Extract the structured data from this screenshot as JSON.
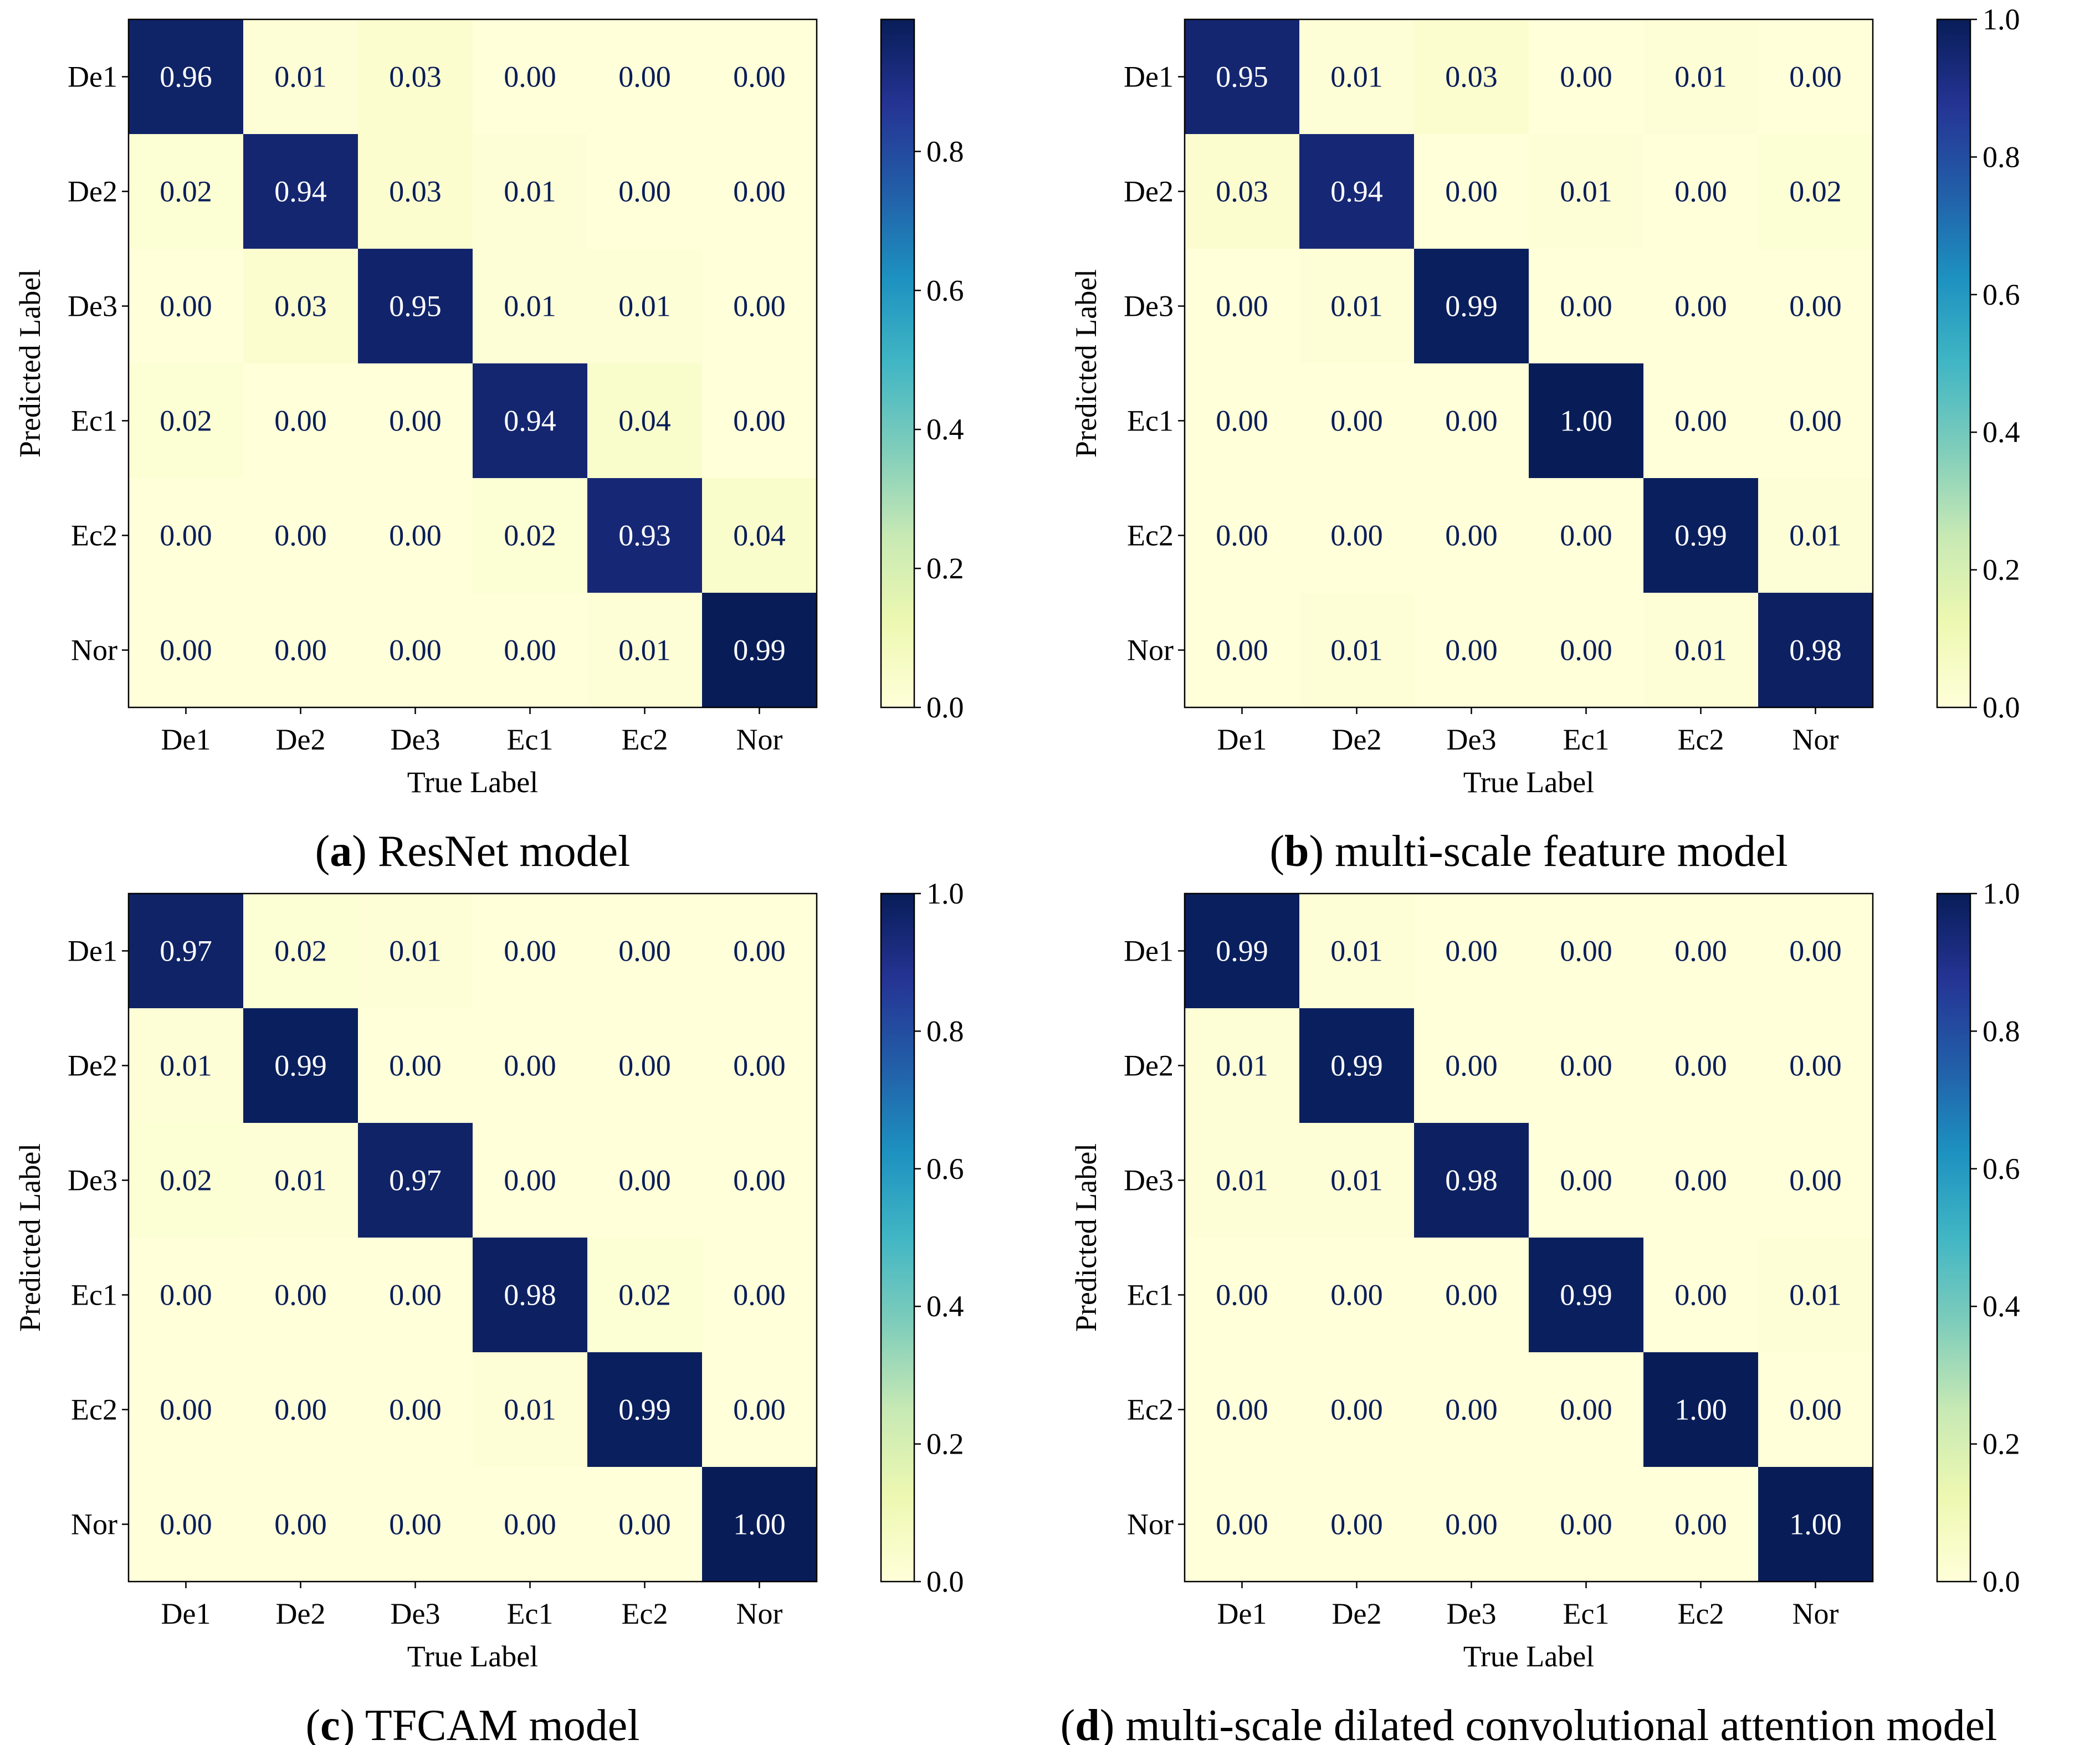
{
  "colors": {
    "low": "#ffffd9",
    "mid_low": "#edf8b1",
    "mid": "#7fcdbb",
    "mid_high": "#1d91c0",
    "high": "#081d58",
    "text_dark": "#081d58",
    "text_light": "#ffffff",
    "axis": "#000000"
  },
  "chart_data": [
    {
      "type": "heatmap",
      "caption_letter": "a",
      "caption_text": " ResNet model",
      "xlabel": "True Label",
      "ylabel": "Predicted Label",
      "x_categories": [
        "De1",
        "De2",
        "De3",
        "Ec1",
        "Ec2",
        "Nor"
      ],
      "y_categories": [
        "De1",
        "De2",
        "De3",
        "Ec1",
        "Ec2",
        "Nor"
      ],
      "values": [
        [
          0.96,
          0.01,
          0.03,
          0.0,
          0.0,
          0.0
        ],
        [
          0.02,
          0.94,
          0.03,
          0.01,
          0.0,
          0.0
        ],
        [
          0.0,
          0.03,
          0.95,
          0.01,
          0.01,
          0.0
        ],
        [
          0.02,
          0.0,
          0.0,
          0.94,
          0.04,
          0.0
        ],
        [
          0.0,
          0.0,
          0.0,
          0.02,
          0.93,
          0.04
        ],
        [
          0.0,
          0.0,
          0.0,
          0.0,
          0.01,
          0.99
        ]
      ],
      "labels": [
        [
          "0.96",
          "0.01",
          "0.03",
          "0.00",
          "0.00",
          "0.00"
        ],
        [
          "0.02",
          "0.94",
          "0.03",
          "0.01",
          "0.00",
          "0.00"
        ],
        [
          "0.00",
          "0.03",
          "0.95",
          "0.01",
          "0.01",
          "0.00"
        ],
        [
          "0.02",
          "0.00",
          "0.00",
          "0.94",
          "0.04",
          "0.00"
        ],
        [
          "0.00",
          "0.00",
          "0.00",
          "0.02",
          "0.93",
          "0.04"
        ],
        [
          "0.00",
          "0.00",
          "0.00",
          "0.00",
          "0.01",
          "0.99"
        ]
      ],
      "colorbar": {
        "vmin": 0.0,
        "vmax": 0.99,
        "ticks": [
          "0.0",
          "0.2",
          "0.4",
          "0.6",
          "0.8"
        ]
      }
    },
    {
      "type": "heatmap",
      "caption_letter": "b",
      "caption_text": " multi-scale feature model",
      "xlabel": "True Label",
      "ylabel": "Predicted Label",
      "x_categories": [
        "De1",
        "De2",
        "De3",
        "Ec1",
        "Ec2",
        "Nor"
      ],
      "y_categories": [
        "De1",
        "De2",
        "De3",
        "Ec1",
        "Ec2",
        "Nor"
      ],
      "values": [
        [
          0.95,
          0.01,
          0.03,
          0.0,
          0.01,
          0.0
        ],
        [
          0.03,
          0.94,
          0.0,
          0.01,
          0.0,
          0.02
        ],
        [
          0.0,
          0.01,
          0.99,
          0.0,
          0.0,
          0.0
        ],
        [
          0.0,
          0.0,
          0.0,
          1.0,
          0.0,
          0.0
        ],
        [
          0.0,
          0.0,
          0.0,
          0.0,
          0.99,
          0.01
        ],
        [
          0.0,
          0.01,
          0.0,
          0.0,
          0.01,
          0.98
        ]
      ],
      "labels": [
        [
          "0.95",
          "0.01",
          "0.03",
          "0.00",
          "0.01",
          "0.00"
        ],
        [
          "0.03",
          "0.94",
          "0.00",
          "0.01",
          "0.00",
          "0.02"
        ],
        [
          "0.00",
          "0.01",
          "0.99",
          "0.00",
          "0.00",
          "0.00"
        ],
        [
          "0.00",
          "0.00",
          "0.00",
          "1.00",
          "0.00",
          "0.00"
        ],
        [
          "0.00",
          "0.00",
          "0.00",
          "0.00",
          "0.99",
          "0.01"
        ],
        [
          "0.00",
          "0.01",
          "0.00",
          "0.00",
          "0.01",
          "0.98"
        ]
      ],
      "colorbar": {
        "vmin": 0.0,
        "vmax": 1.0,
        "ticks": [
          "0.0",
          "0.2",
          "0.4",
          "0.6",
          "0.8",
          "1.0"
        ]
      }
    },
    {
      "type": "heatmap",
      "caption_letter": "c",
      "caption_text": " TFCAM model",
      "xlabel": "True Label",
      "ylabel": "Predicted Label",
      "x_categories": [
        "De1",
        "De2",
        "De3",
        "Ec1",
        "Ec2",
        "Nor"
      ],
      "y_categories": [
        "De1",
        "De2",
        "De3",
        "Ec1",
        "Ec2",
        "Nor"
      ],
      "values": [
        [
          0.97,
          0.02,
          0.01,
          0.0,
          0.0,
          0.0
        ],
        [
          0.01,
          0.99,
          0.0,
          0.0,
          0.0,
          0.0
        ],
        [
          0.02,
          0.01,
          0.97,
          0.0,
          0.0,
          0.0
        ],
        [
          0.0,
          0.0,
          0.0,
          0.98,
          0.02,
          0.0
        ],
        [
          0.0,
          0.0,
          0.0,
          0.01,
          0.99,
          0.0
        ],
        [
          0.0,
          0.0,
          0.0,
          0.0,
          0.0,
          1.0
        ]
      ],
      "labels": [
        [
          "0.97",
          "0.02",
          "0.01",
          "0.00",
          "0.00",
          "0.00"
        ],
        [
          "0.01",
          "0.99",
          "0.00",
          "0.00",
          "0.00",
          "0.00"
        ],
        [
          "0.02",
          "0.01",
          "0.97",
          "0.00",
          "0.00",
          "0.00"
        ],
        [
          "0.00",
          "0.00",
          "0.00",
          "0.98",
          "0.02",
          "0.00"
        ],
        [
          "0.00",
          "0.00",
          "0.00",
          "0.01",
          "0.99",
          "0.00"
        ],
        [
          "0.00",
          "0.00",
          "0.00",
          "0.00",
          "0.00",
          "1.00"
        ]
      ],
      "colorbar": {
        "vmin": 0.0,
        "vmax": 1.0,
        "ticks": [
          "0.0",
          "0.2",
          "0.4",
          "0.6",
          "0.8",
          "1.0"
        ]
      }
    },
    {
      "type": "heatmap",
      "caption_letter": "d",
      "caption_text": " multi-scale dilated convolutional attention model",
      "xlabel": "True Label",
      "ylabel": "Predicted Label",
      "x_categories": [
        "De1",
        "De2",
        "De3",
        "Ec1",
        "Ec2",
        "Nor"
      ],
      "y_categories": [
        "De1",
        "De2",
        "De3",
        "Ec1",
        "Ec2",
        "Nor"
      ],
      "values": [
        [
          0.99,
          0.01,
          0.0,
          0.0,
          0.0,
          0.0
        ],
        [
          0.01,
          0.99,
          0.0,
          0.0,
          0.0,
          0.0
        ],
        [
          0.01,
          0.01,
          0.98,
          0.0,
          0.0,
          0.0
        ],
        [
          0.0,
          0.0,
          0.0,
          0.99,
          0.0,
          0.01
        ],
        [
          0.0,
          0.0,
          0.0,
          0.0,
          1.0,
          0.0
        ],
        [
          0.0,
          0.0,
          0.0,
          0.0,
          0.0,
          1.0
        ]
      ],
      "labels": [
        [
          "0.99",
          "0.01",
          "0.00",
          "0.00",
          "0.00",
          "0.00"
        ],
        [
          "0.01",
          "0.99",
          "0.00",
          "0.00",
          "0.00",
          "0.00"
        ],
        [
          "0.01",
          "0.01",
          "0.98",
          "0.00",
          "0.00",
          "0.00"
        ],
        [
          "0.00",
          "0.00",
          "0.00",
          "0.99",
          "0.00",
          "0.01"
        ],
        [
          "0.00",
          "0.00",
          "0.00",
          "0.00",
          "1.00",
          "0.00"
        ],
        [
          "0.00",
          "0.00",
          "0.00",
          "0.00",
          "0.00",
          "1.00"
        ]
      ],
      "colorbar": {
        "vmin": 0.0,
        "vmax": 1.0,
        "ticks": [
          "0.0",
          "0.2",
          "0.4",
          "0.6",
          "0.8",
          "1.0"
        ]
      }
    }
  ]
}
